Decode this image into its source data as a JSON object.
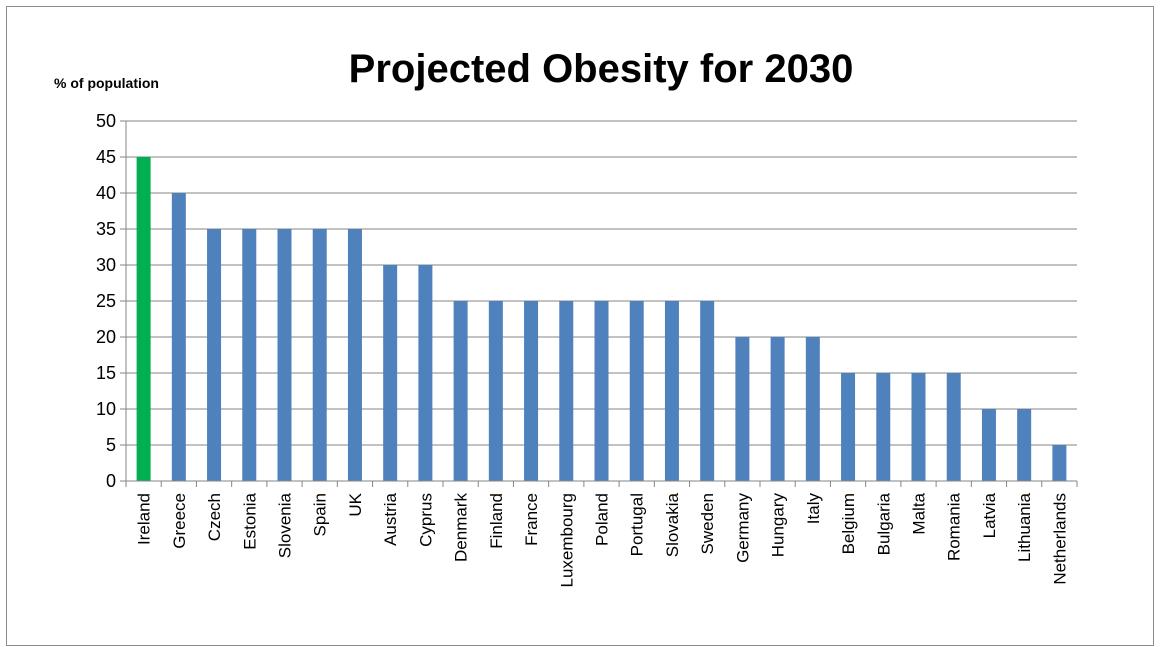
{
  "chart_data": {
    "type": "bar",
    "title": "Projected Obesity for 2030",
    "ylabel": "% of population",
    "xlabel": "",
    "ylim": [
      0,
      50
    ],
    "yticks": [
      0,
      5,
      10,
      15,
      20,
      25,
      30,
      35,
      40,
      45,
      50
    ],
    "grid": true,
    "legend": "none",
    "categories": [
      "Ireland",
      "Greece",
      "Czech",
      "Estonia",
      "Slovenia",
      "Spain",
      "UK",
      "Austria",
      "Cyprus",
      "Denmark",
      "Finland",
      "France",
      "Luxembourg",
      "Poland",
      "Portugal",
      "Slovakia",
      "Sweden",
      "Germany",
      "Hungary",
      "Italy",
      "Belgium",
      "Bulgaria",
      "Malta",
      "Romania",
      "Latvia",
      "Lithuania",
      "Netherlands"
    ],
    "values": [
      45,
      40,
      35,
      35,
      35,
      35,
      35,
      30,
      30,
      25,
      25,
      25,
      25,
      25,
      25,
      25,
      25,
      20,
      20,
      20,
      15,
      15,
      15,
      15,
      10,
      10,
      5
    ],
    "colors": {
      "default_bar": "#4f81bd",
      "highlight_bar": "#00b050",
      "gridline": "#868686",
      "axis": "#868686"
    },
    "highlight_category": "Ireland"
  }
}
